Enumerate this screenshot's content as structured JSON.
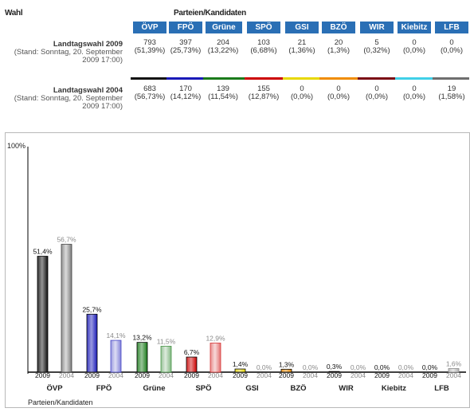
{
  "header": {
    "wahl_label": "Wahl",
    "parteien_label": "Parteien/Kandidaten"
  },
  "parties": [
    "ÖVP",
    "FPÖ",
    "Grüne",
    "SPÖ",
    "GSI",
    "BZÖ",
    "WIR",
    "Kiebitz",
    "LFB"
  ],
  "party_colors": [
    "#111111",
    "#1919b8",
    "#1a7a1a",
    "#cc0000",
    "#e8d800",
    "#f08c00",
    "#7a0a14",
    "#40d0e8",
    "#6e6e6e"
  ],
  "rows": [
    {
      "title": "Landtagswahl 2009",
      "subtitle": "(Stand: Sonntag, 20. September",
      "subtitle2": "2009 17:00)",
      "votes": [
        "793",
        "397",
        "204",
        "103",
        "21",
        "20",
        "5",
        "0",
        "0"
      ],
      "pct": [
        "(51,39%)",
        "(25,73%)",
        "(13,22%)",
        "(6,68%)",
        "(1,36%)",
        "(1,3%)",
        "(0,32%)",
        "(0,0%)",
        "(0,0%)"
      ]
    },
    {
      "title": "Landtagswahl 2004",
      "subtitle": "(Stand: Sonntag, 20. September",
      "subtitle2": "2009 17:00)",
      "votes": [
        "683",
        "170",
        "139",
        "155",
        "0",
        "0",
        "0",
        "0",
        "19"
      ],
      "pct": [
        "(56,73%)",
        "(14,12%)",
        "(11,54%)",
        "(12,87%)",
        "(0,0%)",
        "(0,0%)",
        "(0,0%)",
        "(0,0%)",
        "(1,58%)"
      ]
    }
  ],
  "chart_data": {
    "type": "bar",
    "ylabel": "100%",
    "xlabel": "Parteien/Kandidaten",
    "ylim": [
      0,
      100
    ],
    "categories": [
      "ÖVP",
      "FPÖ",
      "Grüne",
      "SPÖ",
      "GSI",
      "BZÖ",
      "WIR",
      "Kiebitz",
      "LFB"
    ],
    "series": [
      {
        "name": "2009",
        "values": [
          51.4,
          25.7,
          13.2,
          6.7,
          1.4,
          1.3,
          0.3,
          0.0,
          0.0
        ],
        "labels": [
          "51,4%",
          "25,7%",
          "13,2%",
          "6,7%",
          "1,4%",
          "1,3%",
          "0,3%",
          "0,0%",
          "0,0%"
        ]
      },
      {
        "name": "2004",
        "values": [
          56.7,
          14.1,
          11.5,
          12.9,
          0.0,
          0.0,
          0.0,
          0.0,
          1.6
        ],
        "labels": [
          "56,7%",
          "14,1%",
          "11,5%",
          "12,9%",
          "0,0%",
          "0,0%",
          "0,0%",
          "0,0%",
          "1,6%"
        ]
      }
    ]
  }
}
